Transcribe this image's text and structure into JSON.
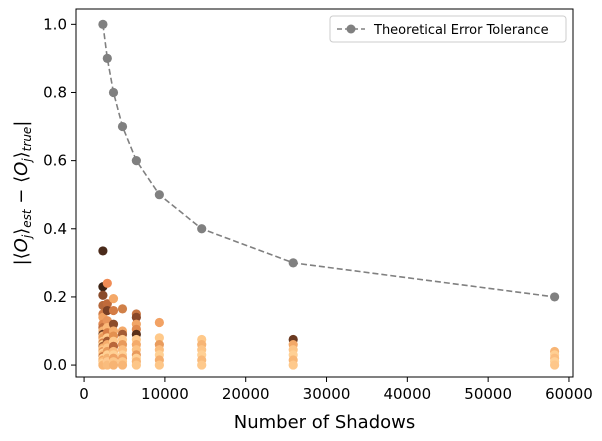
{
  "chart_data": {
    "type": "scatter",
    "xlabel": "Number of Shadows",
    "ylabel": "|⟨O_j⟩_est − ⟨O_j⟩_true|",
    "ylabel_parts": {
      "open": "|⟨",
      "o1": "O",
      "j1": "j",
      "mid": "⟩",
      "sub_est": "est",
      "minus": " − ⟨",
      "o2": "O",
      "j2": "j",
      "mid2": "⟩",
      "sub_true": "true",
      "close": "|"
    },
    "xlim": [
      -1000,
      60500
    ],
    "ylim": [
      -0.035,
      1.045
    ],
    "x_ticks": [
      0,
      10000,
      20000,
      30000,
      40000,
      50000,
      60000
    ],
    "x_tick_labels": [
      "0",
      "10000",
      "20000",
      "30000",
      "40000",
      "50000",
      "60000"
    ],
    "y_ticks": [
      0.0,
      0.2,
      0.4,
      0.6,
      0.8,
      1.0
    ],
    "y_tick_labels": [
      "0.0",
      "0.2",
      "0.4",
      "0.6",
      "0.8",
      "1.0"
    ],
    "legend_position": "top-right",
    "series": [
      {
        "name": "Theoretical Error Tolerance",
        "style": "dashed-line-with-markers",
        "color": "#808080",
        "x": [
          2330,
          2875,
          3639,
          4753,
          6470,
          9316,
          14556,
          25877,
          58224
        ],
        "y": [
          1.0,
          0.9,
          0.8,
          0.7,
          0.6,
          0.5,
          0.4,
          0.3,
          0.2
        ]
      }
    ],
    "scatter_groups": [
      {
        "x": 2330,
        "points": [
          [
            0.335,
            "#4a2a1a"
          ],
          [
            0.23,
            "#3d2314"
          ],
          [
            0.205,
            "#8a4b2a"
          ],
          [
            0.175,
            "#b5673a"
          ],
          [
            0.15,
            "#d07a45"
          ],
          [
            0.14,
            "#f0a060"
          ],
          [
            0.12,
            "#e08850"
          ],
          [
            0.11,
            "#c46f3e"
          ],
          [
            0.1,
            "#f4b070"
          ],
          [
            0.09,
            "#6b3a20"
          ],
          [
            0.085,
            "#f7b97a"
          ],
          [
            0.08,
            "#eb9a5a"
          ],
          [
            0.07,
            "#fcc88a"
          ],
          [
            0.065,
            "#d88048"
          ],
          [
            0.06,
            "#ffcf90"
          ],
          [
            0.055,
            "#a35e35"
          ],
          [
            0.05,
            "#f5ae6c"
          ],
          [
            0.045,
            "#fdc485"
          ],
          [
            0.04,
            "#e69558"
          ],
          [
            0.035,
            "#ffd095"
          ],
          [
            0.03,
            "#f9bb7c"
          ],
          [
            0.025,
            "#c97540"
          ],
          [
            0.02,
            "#ffd49a"
          ],
          [
            0.015,
            "#f3a866"
          ],
          [
            0.01,
            "#fdc07f"
          ],
          [
            0.005,
            "#ffd095"
          ],
          [
            0.0,
            "#f8b675"
          ]
        ]
      },
      {
        "x": 2875,
        "points": [
          [
            0.24,
            "#f08c55"
          ],
          [
            0.18,
            "#c06a3a"
          ],
          [
            0.16,
            "#7a4025"
          ],
          [
            0.13,
            "#e8945a"
          ],
          [
            0.11,
            "#fbb878"
          ],
          [
            0.095,
            "#d97e46"
          ],
          [
            0.08,
            "#ffca8c"
          ],
          [
            0.07,
            "#a35a32"
          ],
          [
            0.06,
            "#f6ad6c"
          ],
          [
            0.05,
            "#fdc587"
          ],
          [
            0.04,
            "#e79a5c"
          ],
          [
            0.03,
            "#ffd093"
          ],
          [
            0.02,
            "#f4b272"
          ],
          [
            0.01,
            "#fec990"
          ],
          [
            0.0,
            "#f9bc7d"
          ]
        ]
      },
      {
        "x": 3639,
        "points": [
          [
            0.195,
            "#f4a868"
          ],
          [
            0.16,
            "#d47c45"
          ],
          [
            0.12,
            "#8c4c2a"
          ],
          [
            0.1,
            "#f5ad6c"
          ],
          [
            0.085,
            "#e3904f"
          ],
          [
            0.07,
            "#ffc98b"
          ],
          [
            0.055,
            "#b8663a"
          ],
          [
            0.04,
            "#fbbd7e"
          ],
          [
            0.03,
            "#ffd094"
          ],
          [
            0.02,
            "#efa264"
          ],
          [
            0.01,
            "#fdc688"
          ],
          [
            0.0,
            "#f7b473"
          ]
        ]
      },
      {
        "x": 4753,
        "points": [
          [
            0.165,
            "#d08048"
          ],
          [
            0.1,
            "#f3a96a"
          ],
          [
            0.09,
            "#a35c34"
          ],
          [
            0.075,
            "#ffc98c"
          ],
          [
            0.06,
            "#e89a5c"
          ],
          [
            0.045,
            "#fbbd7f"
          ],
          [
            0.03,
            "#ffd095"
          ],
          [
            0.02,
            "#f0a466"
          ],
          [
            0.01,
            "#fdc789"
          ],
          [
            0.0,
            "#f8b676"
          ]
        ]
      },
      {
        "x": 6470,
        "points": [
          [
            0.15,
            "#c77440"
          ],
          [
            0.14,
            "#8a4828"
          ],
          [
            0.12,
            "#f1a566"
          ],
          [
            0.105,
            "#e08a4e"
          ],
          [
            0.09,
            "#5a3018"
          ],
          [
            0.075,
            "#ffc98b"
          ],
          [
            0.06,
            "#f4ab6b"
          ],
          [
            0.045,
            "#fcc283"
          ],
          [
            0.03,
            "#e89b5d"
          ],
          [
            0.02,
            "#ffd095"
          ],
          [
            0.01,
            "#f7b575"
          ],
          [
            0.0,
            "#fdc688"
          ]
        ]
      },
      {
        "x": 9316,
        "points": [
          [
            0.125,
            "#f2a264"
          ],
          [
            0.08,
            "#ffc98a"
          ],
          [
            0.06,
            "#e99c5e"
          ],
          [
            0.045,
            "#fbbd7e"
          ],
          [
            0.03,
            "#ffd094"
          ],
          [
            0.015,
            "#f5ae6e"
          ],
          [
            0.0,
            "#fdc688"
          ]
        ]
      },
      {
        "x": 14556,
        "points": [
          [
            0.075,
            "#ffc98a"
          ],
          [
            0.06,
            "#f7b575"
          ],
          [
            0.045,
            "#fdc587"
          ],
          [
            0.03,
            "#ffd095"
          ],
          [
            0.015,
            "#f9ba7b"
          ],
          [
            0.0,
            "#fec98c"
          ]
        ]
      },
      {
        "x": 25877,
        "points": [
          [
            0.075,
            "#6b3a20"
          ],
          [
            0.06,
            "#f3a868"
          ],
          [
            0.045,
            "#fdc587"
          ],
          [
            0.03,
            "#ffd095"
          ],
          [
            0.015,
            "#f8b777"
          ],
          [
            0.0,
            "#fec98c"
          ]
        ]
      },
      {
        "x": 58224,
        "points": [
          [
            0.04,
            "#f7b575"
          ],
          [
            0.03,
            "#ffcf92"
          ],
          [
            0.02,
            "#fbbd7f"
          ],
          [
            0.01,
            "#ffd095"
          ],
          [
            0.0,
            "#fec78a"
          ]
        ]
      }
    ]
  }
}
